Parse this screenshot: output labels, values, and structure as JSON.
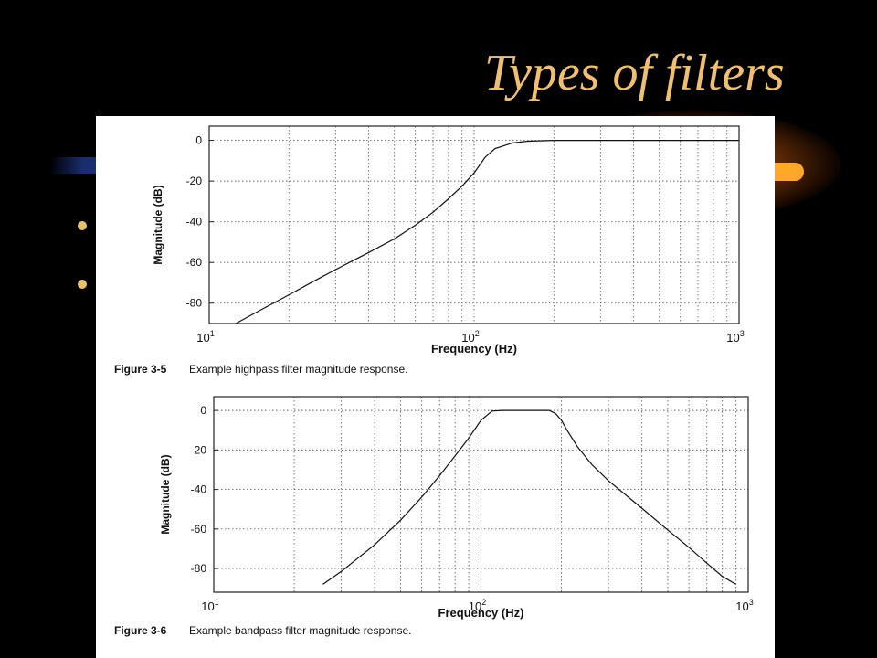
{
  "slide": {
    "title": "Types of filters",
    "bullets": [
      "",
      ""
    ]
  },
  "chart_data": [
    {
      "type": "line",
      "figure_label": "Figure 3-5",
      "caption": "Example highpass filter magnitude response.",
      "xlabel": "Frequency (Hz)",
      "ylabel": "Magnitude (dB)",
      "x_scale": "log",
      "xlim": [
        10,
        1000
      ],
      "ylim": [
        -90,
        7
      ],
      "x_ticks": [
        {
          "base": "10",
          "exp": "1"
        },
        {
          "base": "10",
          "exp": "2"
        },
        {
          "base": "10",
          "exp": "3"
        }
      ],
      "y_ticks": [
        "0",
        "-20",
        "-40",
        "-60",
        "-80"
      ],
      "y_tick_values": [
        0,
        -20,
        -40,
        -60,
        -80
      ],
      "grid": true,
      "series": [
        {
          "x": [
            12.6,
            15,
            20,
            25,
            30,
            40,
            50,
            60,
            70,
            80,
            90,
            100,
            110,
            120,
            140,
            160,
            200,
            300,
            500,
            1000
          ],
          "y": [
            -90,
            -84.6,
            -75.9,
            -69,
            -63.5,
            -55.1,
            -48.4,
            -41.7,
            -35.3,
            -28.7,
            -22.5,
            -16,
            -8.3,
            -4,
            -1.2,
            -0.4,
            0,
            0,
            0,
            0
          ]
        }
      ]
    },
    {
      "type": "line",
      "figure_label": "Figure 3-6",
      "caption": "Example bandpass filter magnitude response.",
      "xlabel": "Frequency (Hz)",
      "ylabel": "Magnitude (dB)",
      "x_scale": "log",
      "xlim": [
        10,
        1000
      ],
      "ylim": [
        -92,
        7
      ],
      "x_ticks": [
        {
          "base": "10",
          "exp": "1"
        },
        {
          "base": "10",
          "exp": "2"
        },
        {
          "base": "10",
          "exp": "3"
        }
      ],
      "y_ticks": [
        "0",
        "-20",
        "-40",
        "-60",
        "-80"
      ],
      "y_tick_values": [
        0,
        -20,
        -40,
        -60,
        -80
      ],
      "grid": true,
      "series": [
        {
          "x": [
            25.6,
            30,
            40,
            50,
            60,
            70,
            80,
            90,
            100,
            110,
            120,
            150,
            180,
            190,
            200,
            210,
            230,
            260,
            300,
            400,
            500,
            600,
            700,
            800,
            900
          ],
          "y": [
            -88,
            -81.5,
            -68,
            -55.6,
            -43.9,
            -33,
            -23,
            -14,
            -5,
            -0.3,
            0,
            0,
            0,
            -1.5,
            -5,
            -10,
            -18.5,
            -27.4,
            -35.6,
            -49.5,
            -60.5,
            -69.3,
            -77.3,
            -84,
            -88
          ]
        }
      ]
    }
  ]
}
